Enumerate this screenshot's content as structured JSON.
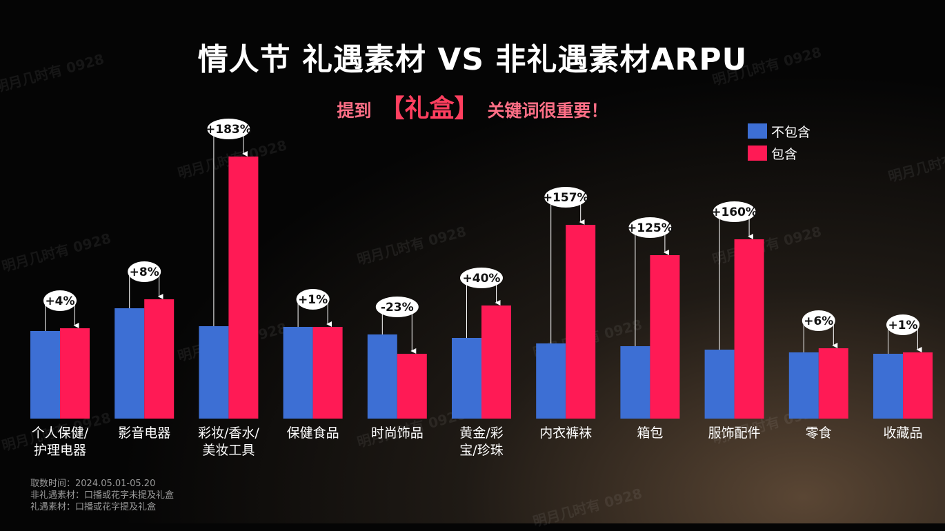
{
  "title": "情人节 礼遇素材 VS 非礼遇素材ARPU",
  "subtitle": {
    "before": "提到",
    "keyword": "【礼盒】",
    "after": "关键词很重要！"
  },
  "watermark": "明月几时有 0928",
  "colors": {
    "exclude": "#3d6fd4",
    "include": "#ff1a55",
    "background": "#050505"
  },
  "chart_data": {
    "type": "bar",
    "categories": [
      [
        "个人保健/",
        "护理电器"
      ],
      [
        "影音电器"
      ],
      [
        "彩妆/香水/",
        "美妆工具"
      ],
      [
        "保健食品"
      ],
      [
        "时尚饰品"
      ],
      [
        "黄金/彩",
        "宝/珍珠"
      ],
      [
        "内衣裤袜"
      ],
      [
        "箱包"
      ],
      [
        "服饰配件"
      ],
      [
        "零食"
      ],
      [
        "收藏品"
      ]
    ],
    "series": [
      {
        "name": "不包含",
        "values": [
          127,
          160,
          134,
          133,
          122,
          117,
          109,
          105,
          100,
          96,
          94
        ]
      },
      {
        "name": "包含",
        "values": [
          131,
          173,
          380,
          133,
          94,
          164,
          281,
          237,
          260,
          102,
          96
        ]
      }
    ],
    "annotations": [
      "+4%",
      "+8%",
      "+183%",
      "+1%",
      "-23%",
      "+40%",
      "+157%",
      "+125%",
      "+160%",
      "+6%",
      "+1%"
    ],
    "grid": false,
    "legend_position": "top-right"
  },
  "footnotes": [
    "取数时间：2024.05.01-05.20",
    "非礼遇素材：口播或花字未提及礼盒",
    "礼遇素材：口播或花字提及礼盒"
  ]
}
